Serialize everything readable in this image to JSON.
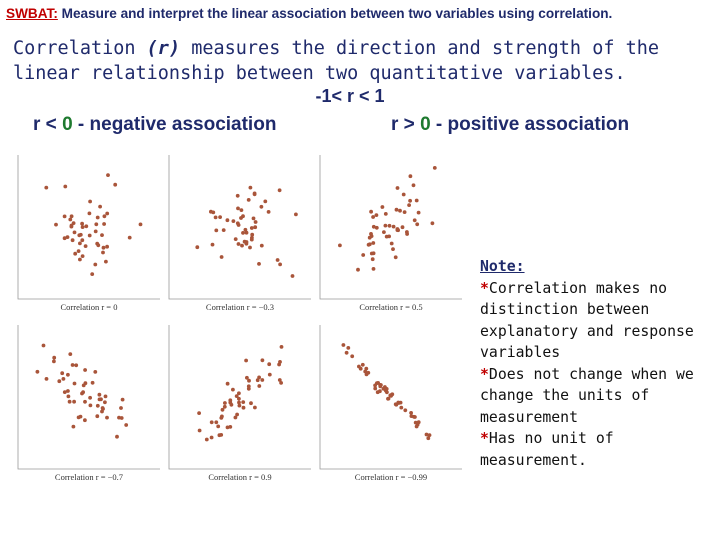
{
  "objective": {
    "lead": "SWBAT:",
    "text": " Measure and interpret the linear association between two variables using correlation."
  },
  "definition": {
    "term": "Correlation",
    "symbol": "(r)",
    "text": " measures the direction and strength of the linear relationship between two quantitative variables."
  },
  "range": "-1< r < 1",
  "negative": {
    "prefix": "r < ",
    "num": "0",
    "suffix": " - negative association"
  },
  "positive": {
    "prefix": "r > ",
    "num": "0",
    "suffix": " - positive association"
  },
  "colors": {
    "point": "#a9553a",
    "axis": "#999999",
    "title": "#1f2a6b",
    "accent": "#c00000",
    "number": "#1e7a2f"
  },
  "panels": [
    {
      "caption": "Correlation r = 0",
      "r": 0
    },
    {
      "caption": "Correlation r = −0.3",
      "r": -0.3
    },
    {
      "caption": "Correlation r = 0.5",
      "r": 0.5
    },
    {
      "caption": "Correlation r = −0.7",
      "r": -0.7
    },
    {
      "caption": "Correlation r = 0.9",
      "r": 0.9
    },
    {
      "caption": "Correlation r = −0.99",
      "r": -0.99
    }
  ],
  "note": {
    "heading": "Note:",
    "items": [
      "Correlation makes no distinction between explanatory and response variables",
      "Does not change when we change the units of measurement",
      "Has no unit of measurement."
    ]
  }
}
